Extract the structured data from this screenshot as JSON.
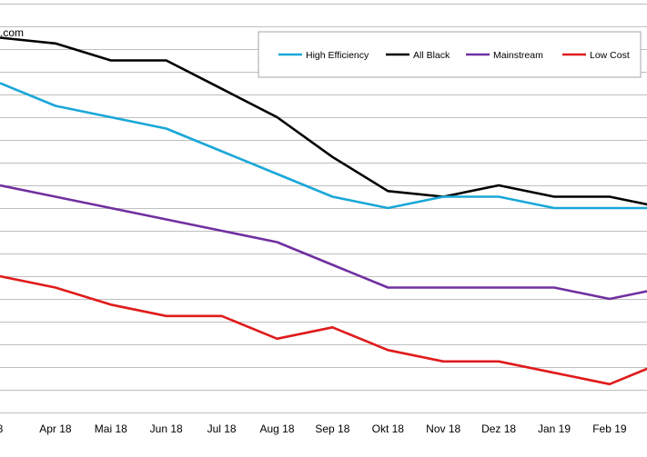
{
  "source_text": ".com",
  "chart_data": {
    "type": "line",
    "categories": [
      "8",
      "Apr 18",
      "Mai 18",
      "Jun 18",
      "Jul 18",
      "Aug 18",
      "Sep 18",
      "Okt 18",
      "Nov 18",
      "Dez 18",
      "Jan 19",
      "Feb 19",
      "M"
    ],
    "grid": true,
    "legend_position": "top-right",
    "series": [
      {
        "name": "High Efficiency",
        "color": "#1aa7d8",
        "values": [
          0.45,
          0.43,
          0.42,
          0.41,
          0.39,
          0.37,
          0.35,
          0.34,
          0.35,
          0.35,
          0.34,
          0.34,
          0.34
        ]
      },
      {
        "name": "All Black",
        "color": "#000000",
        "values": [
          0.49,
          0.485,
          0.47,
          0.47,
          0.445,
          0.42,
          0.385,
          0.355,
          0.35,
          0.36,
          0.35,
          0.35,
          0.34
        ]
      },
      {
        "name": "Mainstream",
        "color": "#7030a0",
        "values": [
          0.36,
          0.35,
          0.34,
          0.33,
          0.32,
          0.31,
          0.29,
          0.27,
          0.27,
          0.27,
          0.27,
          0.26,
          0.27
        ]
      },
      {
        "name": "Low Cost",
        "color": "#e01b1b",
        "values": [
          0.28,
          0.27,
          0.255,
          0.245,
          0.245,
          0.225,
          0.235,
          0.215,
          0.205,
          0.205,
          0.195,
          0.185,
          0.205
        ]
      }
    ]
  }
}
